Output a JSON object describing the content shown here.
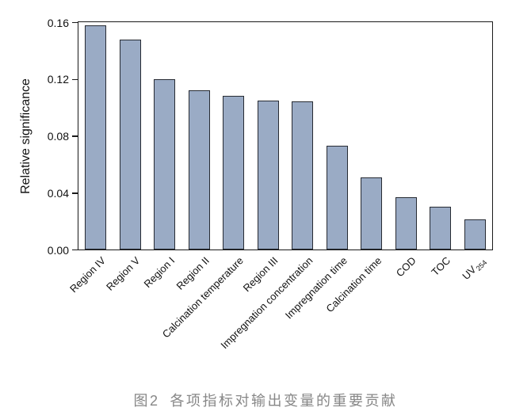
{
  "figure": {
    "caption": {
      "figure_label": "图2",
      "text": "各项指标对输出变量的重要贡献"
    }
  },
  "chart_data": {
    "type": "bar",
    "title": "",
    "xlabel": "",
    "ylabel": "Relative significance",
    "ylim": [
      0,
      0.16
    ],
    "yticks": [
      "0.00",
      "0.04",
      "0.08",
      "0.12",
      "0.16"
    ],
    "grid": false,
    "legend": null,
    "categories": [
      "Region IV",
      "Region V",
      "Region I",
      "Region II",
      "Calcination temperature",
      "Region III",
      "Impregnation concentration",
      "Impregnation time",
      "Calcination time",
      "COD",
      "TOC",
      "UV254"
    ],
    "values": [
      0.158,
      0.148,
      0.12,
      0.112,
      0.108,
      0.105,
      0.104,
      0.073,
      0.051,
      0.037,
      0.03,
      0.021
    ],
    "category_display": [
      {
        "label": "Region IV"
      },
      {
        "label": "Region V"
      },
      {
        "label": "Region I"
      },
      {
        "label": "Region II"
      },
      {
        "label": "Calcination temperature"
      },
      {
        "label": "Region III"
      },
      {
        "label": "Impregnation concentration"
      },
      {
        "label": "Impregnation time"
      },
      {
        "label": "Calcination time"
      },
      {
        "label": "COD"
      },
      {
        "label": "TOC"
      },
      {
        "label": "UV",
        "sub": "254"
      }
    ],
    "colors": {
      "bar_fill": "#9aabc5",
      "bar_border": "#272b33",
      "axis": "#1a1a1a",
      "tick_label": "#111111",
      "caption": "#878787"
    }
  }
}
